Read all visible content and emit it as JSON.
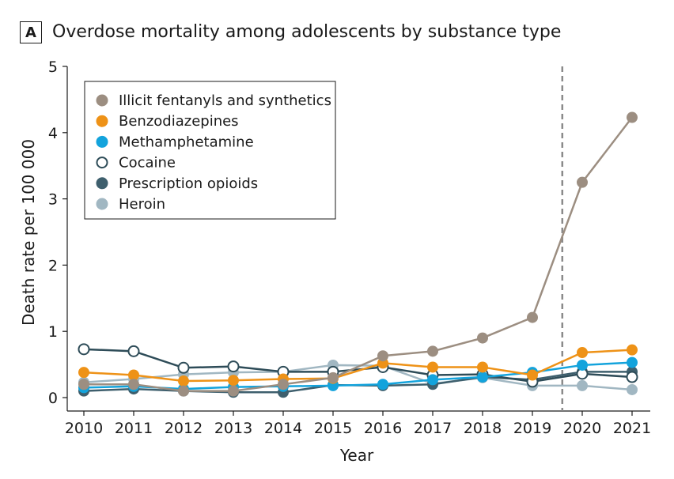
{
  "panel_label": "A",
  "chart_data": {
    "type": "line",
    "title": "Overdose mortality among adolescents by substance type",
    "xlabel": "Year",
    "ylabel": "Death rate per 100 000",
    "x": [
      2010,
      2011,
      2012,
      2013,
      2014,
      2015,
      2016,
      2017,
      2018,
      2019,
      2020,
      2021
    ],
    "ylim": [
      0,
      5
    ],
    "yticks": [
      0,
      1,
      2,
      3,
      4,
      5
    ],
    "vline": 2019.6,
    "legend_position": "top-left",
    "grid": false,
    "series": [
      {
        "name": "Illicit fentanyls and synthetics",
        "color": "#9c8e81",
        "marker": "filled",
        "values": [
          0.2,
          0.2,
          0.1,
          0.1,
          0.2,
          0.3,
          0.63,
          0.7,
          0.9,
          1.21,
          3.25,
          4.23
        ]
      },
      {
        "name": "Benzodiazepines",
        "color": "#ee9217",
        "marker": "filled",
        "values": [
          0.38,
          0.34,
          0.25,
          0.26,
          0.28,
          0.29,
          0.52,
          0.46,
          0.46,
          0.34,
          0.68,
          0.72
        ]
      },
      {
        "name": "Methamphetamine",
        "color": "#13a3dc",
        "marker": "filled",
        "values": [
          0.15,
          0.17,
          0.13,
          0.16,
          0.17,
          0.18,
          0.2,
          0.27,
          0.31,
          0.38,
          0.49,
          0.53
        ]
      },
      {
        "name": "Cocaine",
        "color": "#2e4c58",
        "marker": "open",
        "values": [
          0.73,
          0.7,
          0.45,
          0.47,
          0.39,
          0.39,
          0.46,
          0.34,
          0.35,
          0.24,
          0.36,
          0.31
        ]
      },
      {
        "name": "Prescription opioids",
        "color": "#3e5f6d",
        "marker": "filled",
        "values": [
          0.1,
          0.13,
          0.1,
          0.08,
          0.08,
          0.19,
          0.18,
          0.2,
          0.31,
          0.27,
          0.39,
          0.39
        ]
      },
      {
        "name": "Heroin",
        "color": "#a1b7c2",
        "marker": "filled",
        "values": [
          0.23,
          0.28,
          0.35,
          0.38,
          0.39,
          0.49,
          0.48,
          0.21,
          0.3,
          0.18,
          0.18,
          0.12
        ]
      }
    ]
  }
}
